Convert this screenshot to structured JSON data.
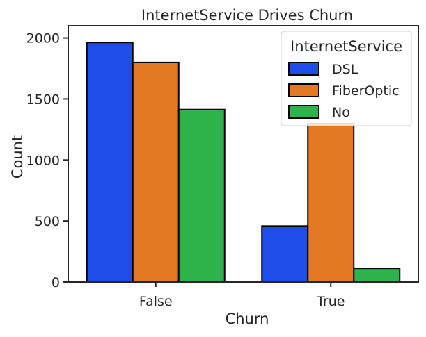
{
  "chart_data": {
    "type": "bar",
    "title": "InternetService Drives Churn",
    "xlabel": "Churn",
    "ylabel": "Count",
    "categories": [
      "False",
      "True"
    ],
    "series": [
      {
        "name": "DSL",
        "values": [
          1962,
          459
        ],
        "color": "#1f4de8"
      },
      {
        "name": "FiberOptic",
        "values": [
          1799,
          1297
        ],
        "color": "#e37a22"
      },
      {
        "name": "No",
        "values": [
          1413,
          113
        ],
        "color": "#2eb34a"
      }
    ],
    "ylim": [
      0,
      2100
    ],
    "yticks": [
      0,
      500,
      1000,
      1500,
      2000
    ],
    "legend": {
      "title": "InternetService",
      "placement": "top-right"
    },
    "grid": false
  }
}
